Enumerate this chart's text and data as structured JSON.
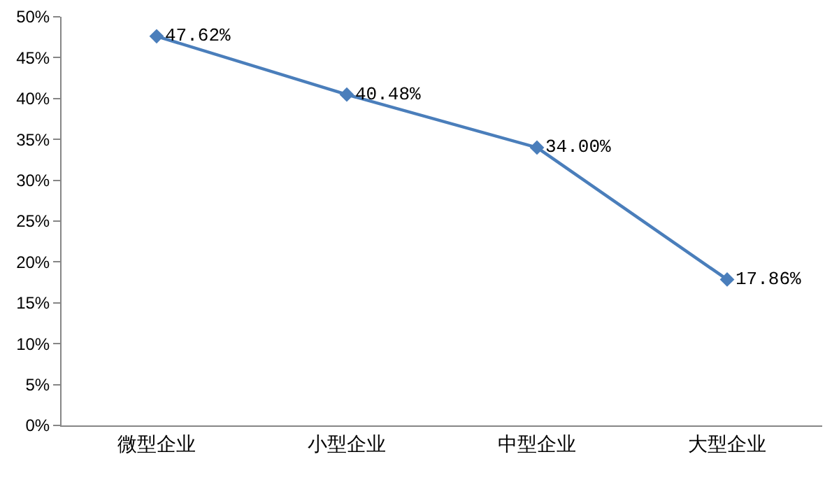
{
  "chart_data": {
    "type": "line",
    "categories": [
      "微型企业",
      "小型企业",
      "中型企业",
      "大型企业"
    ],
    "series": [
      {
        "color": "#4a7ebb",
        "values": [
          47.62,
          40.48,
          34.0,
          17.86
        ],
        "value_labels": [
          "47.62%",
          "40.48%",
          "34.00%",
          "17.86%"
        ]
      }
    ],
    "ylim": [
      0,
      50
    ],
    "yticks": [
      {
        "value": 0,
        "label": "0%"
      },
      {
        "value": 5,
        "label": "5%"
      },
      {
        "value": 10,
        "label": "10%"
      },
      {
        "value": 15,
        "label": "15%"
      },
      {
        "value": 20,
        "label": "20%"
      },
      {
        "value": 25,
        "label": "25%"
      },
      {
        "value": 30,
        "label": "30%"
      },
      {
        "value": 35,
        "label": "35%"
      },
      {
        "value": 40,
        "label": "40%"
      },
      {
        "value": 45,
        "label": "45%"
      },
      {
        "value": 50,
        "label": "50%"
      }
    ],
    "grid": false,
    "marker": "diamond",
    "line_style": "solid"
  }
}
